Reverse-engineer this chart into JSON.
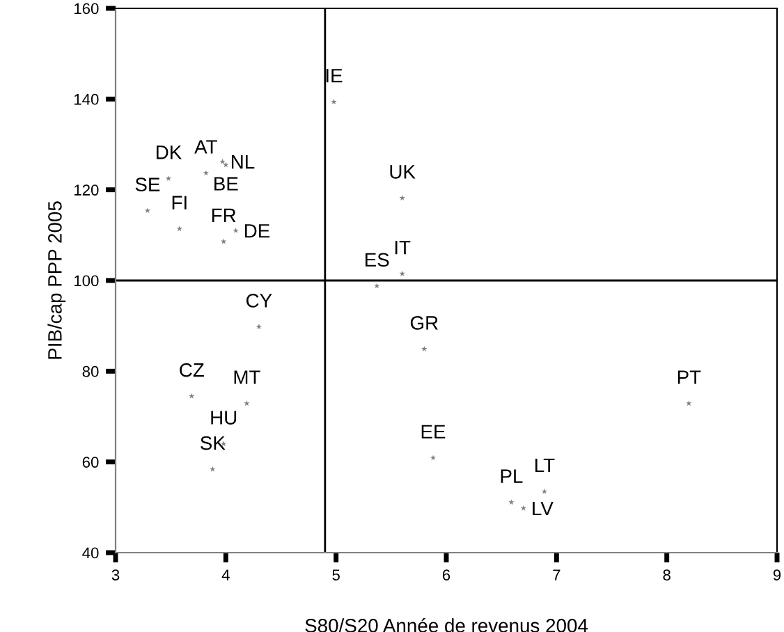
{
  "chart_data": {
    "type": "scatter",
    "xlabel": "S80/S20 Année de revenus 2004",
    "ylabel": "PIB/cap PPP 2005",
    "x": [
      4.98,
      5.6,
      5.6,
      5.37,
      5.8,
      5.88,
      6.59,
      6.7,
      6.89,
      8.2,
      3.29,
      3.58,
      3.48,
      3.82,
      3.97,
      4.0,
      4.09,
      3.98,
      4.3,
      3.69,
      4.19,
      3.98,
      3.88
    ],
    "values": [
      139.4,
      118.2,
      101.5,
      98.8,
      84.9,
      60.9,
      51.1,
      49.8,
      53.5,
      72.9,
      115.4,
      111.4,
      122.5,
      123.7,
      126.2,
      125.5,
      111.0,
      108.6,
      89.8,
      74.5,
      72.9,
      64.0,
      58.4
    ],
    "color": "#808080",
    "marker": "star",
    "annotations": [
      {
        "text": "IE",
        "x": 4.98,
        "y": 139.4
      },
      {
        "text": "UK",
        "x": 5.6,
        "y": 118.2
      },
      {
        "text": "IT",
        "x": 5.6,
        "y": 101.5
      },
      {
        "text": "ES",
        "x": 5.37,
        "y": 98.8
      },
      {
        "text": "GR",
        "x": 5.8,
        "y": 84.9
      },
      {
        "text": "EE",
        "x": 5.88,
        "y": 60.9
      },
      {
        "text": "PL",
        "x": 6.59,
        "y": 51.1
      },
      {
        "text": "LV",
        "x": 6.7,
        "y": 49.8
      },
      {
        "text": "LT",
        "x": 6.89,
        "y": 53.5
      },
      {
        "text": "PT",
        "x": 8.2,
        "y": 72.9
      },
      {
        "text": "SE",
        "x": 3.29,
        "y": 115.4
      },
      {
        "text": "FI",
        "x": 3.58,
        "y": 111.4
      },
      {
        "text": "DK",
        "x": 3.48,
        "y": 122.5
      },
      {
        "text": "AT",
        "x": 3.82,
        "y": 123.7
      },
      {
        "text": "NL",
        "x": 3.97,
        "y": 126.2
      },
      {
        "text": "BE",
        "x": 4.0,
        "y": 125.5
      },
      {
        "text": "DE",
        "x": 4.09,
        "y": 111.0
      },
      {
        "text": "FR",
        "x": 3.98,
        "y": 108.6
      },
      {
        "text": "CY",
        "x": 4.3,
        "y": 89.8
      },
      {
        "text": "CZ",
        "x": 3.69,
        "y": 74.5
      },
      {
        "text": "MT",
        "x": 4.19,
        "y": 72.9
      },
      {
        "text": "HU",
        "x": 3.98,
        "y": 64.0
      },
      {
        "text": "SK",
        "x": 3.88,
        "y": 58.4
      }
    ],
    "ref_lines": [
      {
        "axis": "x",
        "value": 4.9,
        "color": "#000000"
      },
      {
        "axis": "y",
        "value": 100,
        "color": "#000000"
      }
    ],
    "xlim": [
      3,
      9
    ],
    "ylim": [
      40,
      160
    ],
    "xticks": [
      3,
      4,
      5,
      6,
      7,
      8,
      9
    ],
    "yticks": [
      40,
      60,
      80,
      100,
      120,
      140,
      160
    ],
    "grid": false,
    "legend": false
  }
}
